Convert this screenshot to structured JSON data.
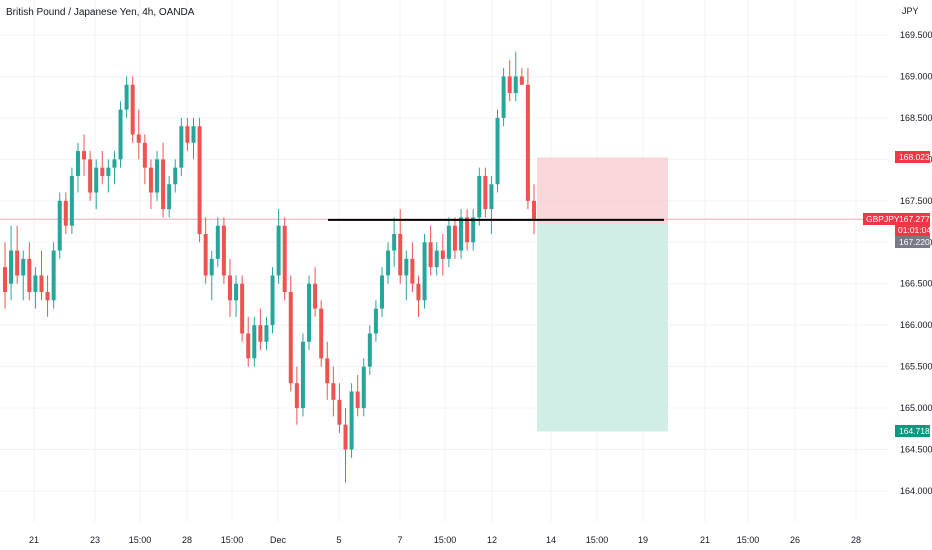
{
  "header": {
    "title": "British Pound / Japanese Yen, 4h, OANDA",
    "currency": "JPY"
  },
  "colors": {
    "up": "#26a69a",
    "down": "#ef5350",
    "stop_zone": "#f8c9cd",
    "target_zone": "#c8ebe3",
    "current_line": "#f7a9ad",
    "gray_tag": "#787b86"
  },
  "axes": {
    "price_ticks": [
      "169.500",
      "169.000",
      "168.500",
      "168.000",
      "167.500",
      "167.000",
      "166.500",
      "166.000",
      "165.500",
      "165.000",
      "164.500",
      "164.000"
    ],
    "time_ticks": [
      "21",
      "23",
      "15:00",
      "28",
      "15:00",
      "Dec",
      "5",
      "7",
      "15:00",
      "12",
      "14",
      "15:00",
      "19",
      "21",
      "15:00",
      "26",
      "28"
    ]
  },
  "tags": {
    "stop": "168.023",
    "symbol": "GBPJPY",
    "last": "167.277",
    "countdown": "01:01:04",
    "entry": "167.220",
    "target": "164.718"
  },
  "chart_data": {
    "type": "candlestick",
    "title": "British Pound / Japanese Yen, 4h, OANDA",
    "y_unit": "JPY",
    "ylim": [
      163.9,
      169.75
    ],
    "last_price": 167.277,
    "horizontal_line": 167.27,
    "position": {
      "entry": 167.22,
      "stop": 168.023,
      "target": 164.718
    },
    "candles": [
      [
        166.7,
        167.0,
        166.2,
        166.4
      ],
      [
        166.5,
        167.2,
        166.3,
        166.9
      ],
      [
        166.9,
        167.2,
        166.5,
        166.6
      ],
      [
        166.6,
        166.9,
        166.3,
        166.8
      ],
      [
        166.8,
        167.0,
        166.3,
        166.4
      ],
      [
        166.4,
        166.7,
        166.2,
        166.6
      ],
      [
        166.6,
        166.9,
        166.3,
        166.4
      ],
      [
        166.4,
        166.6,
        166.1,
        166.3
      ],
      [
        166.3,
        167.0,
        166.2,
        166.9
      ],
      [
        166.9,
        167.6,
        166.8,
        167.5
      ],
      [
        167.5,
        167.6,
        167.1,
        167.2
      ],
      [
        167.2,
        167.9,
        167.1,
        167.8
      ],
      [
        167.8,
        168.2,
        167.6,
        168.1
      ],
      [
        168.1,
        168.3,
        167.8,
        168.0
      ],
      [
        168.0,
        168.1,
        167.5,
        167.6
      ],
      [
        167.6,
        168.0,
        167.4,
        167.9
      ],
      [
        167.9,
        168.1,
        167.7,
        167.8
      ],
      [
        167.8,
        168.0,
        167.6,
        167.9
      ],
      [
        167.9,
        168.1,
        167.7,
        168.0
      ],
      [
        168.0,
        168.7,
        167.9,
        168.6
      ],
      [
        168.6,
        169.0,
        168.5,
        168.9
      ],
      [
        168.9,
        169.0,
        168.2,
        168.3
      ],
      [
        168.3,
        168.6,
        168.0,
        168.2
      ],
      [
        168.2,
        168.3,
        167.7,
        167.9
      ],
      [
        167.9,
        168.0,
        167.4,
        167.6
      ],
      [
        167.6,
        168.1,
        167.5,
        168.0
      ],
      [
        168.0,
        168.2,
        167.3,
        167.4
      ],
      [
        167.4,
        167.8,
        167.3,
        167.7
      ],
      [
        167.7,
        168.0,
        167.6,
        167.9
      ],
      [
        167.9,
        168.5,
        167.8,
        168.4
      ],
      [
        168.4,
        168.5,
        168.1,
        168.2
      ],
      [
        168.2,
        168.5,
        168.0,
        168.4
      ],
      [
        168.4,
        168.5,
        167.0,
        167.1
      ],
      [
        167.1,
        167.3,
        166.5,
        166.6
      ],
      [
        166.6,
        166.9,
        166.3,
        166.8
      ],
      [
        166.8,
        167.3,
        166.7,
        167.2
      ],
      [
        167.2,
        167.3,
        166.5,
        166.6
      ],
      [
        166.6,
        166.8,
        166.1,
        166.3
      ],
      [
        166.3,
        166.6,
        166.1,
        166.5
      ],
      [
        166.5,
        166.6,
        165.8,
        165.9
      ],
      [
        165.9,
        166.1,
        165.5,
        165.6
      ],
      [
        165.6,
        166.1,
        165.5,
        166.0
      ],
      [
        166.0,
        166.2,
        165.7,
        165.8
      ],
      [
        165.8,
        166.1,
        165.7,
        166.0
      ],
      [
        166.0,
        166.7,
        165.9,
        166.6
      ],
      [
        166.6,
        167.4,
        166.5,
        167.2
      ],
      [
        167.2,
        167.3,
        166.3,
        166.4
      ],
      [
        166.4,
        166.6,
        165.2,
        165.3
      ],
      [
        165.3,
        165.5,
        164.8,
        165.0
      ],
      [
        165.0,
        165.9,
        164.9,
        165.8
      ],
      [
        165.8,
        166.6,
        165.7,
        166.5
      ],
      [
        166.5,
        166.7,
        166.1,
        166.2
      ],
      [
        166.2,
        166.3,
        165.5,
        165.6
      ],
      [
        165.6,
        165.8,
        165.1,
        165.3
      ],
      [
        165.3,
        165.5,
        164.9,
        165.1
      ],
      [
        165.1,
        165.3,
        164.7,
        164.8
      ],
      [
        164.8,
        165.0,
        164.1,
        164.5
      ],
      [
        164.5,
        165.3,
        164.4,
        165.2
      ],
      [
        165.2,
        165.4,
        164.9,
        165.0
      ],
      [
        165.0,
        165.6,
        164.9,
        165.5
      ],
      [
        165.5,
        166.0,
        165.4,
        165.9
      ],
      [
        165.9,
        166.3,
        165.8,
        166.2
      ],
      [
        166.2,
        166.7,
        166.1,
        166.6
      ],
      [
        166.6,
        167.0,
        166.5,
        166.9
      ],
      [
        166.9,
        167.3,
        166.7,
        167.1
      ],
      [
        167.1,
        167.4,
        166.5,
        166.6
      ],
      [
        166.6,
        166.9,
        166.3,
        166.8
      ],
      [
        166.8,
        167.0,
        166.4,
        166.5
      ],
      [
        166.5,
        166.6,
        166.1,
        166.3
      ],
      [
        166.3,
        167.1,
        166.2,
        167.0
      ],
      [
        167.0,
        167.2,
        166.6,
        166.7
      ],
      [
        166.7,
        167.0,
        166.6,
        166.9
      ],
      [
        166.9,
        167.1,
        166.6,
        166.8
      ],
      [
        166.8,
        167.3,
        166.7,
        167.2
      ],
      [
        167.2,
        167.3,
        166.8,
        166.9
      ],
      [
        166.9,
        167.4,
        166.8,
        167.3
      ],
      [
        167.3,
        167.4,
        166.9,
        167.0
      ],
      [
        167.0,
        167.4,
        166.9,
        167.3
      ],
      [
        167.3,
        167.9,
        167.2,
        167.8
      ],
      [
        167.8,
        167.9,
        167.3,
        167.4
      ],
      [
        167.4,
        167.8,
        167.1,
        167.7
      ],
      [
        167.7,
        168.6,
        167.6,
        168.5
      ],
      [
        168.5,
        169.1,
        168.4,
        169.0
      ],
      [
        169.0,
        169.2,
        168.7,
        168.8
      ],
      [
        168.8,
        169.3,
        168.7,
        169.0
      ],
      [
        169.0,
        169.1,
        168.9,
        168.9
      ],
      [
        168.9,
        169.1,
        167.4,
        167.5
      ],
      [
        167.5,
        167.7,
        167.1,
        167.277
      ]
    ]
  }
}
